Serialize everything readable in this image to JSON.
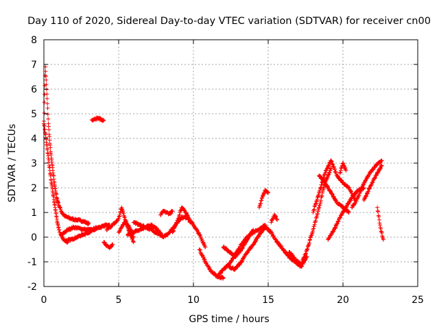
{
  "chart_data": {
    "type": "scatter",
    "title": "Day 110 of 2020, Sidereal Day-to-day VTEC variation (SDTVAR) for receiver cn00",
    "xlabel": "GPS time / hours",
    "ylabel": "SDTVAR / TECUs",
    "xlim": [
      0,
      25
    ],
    "ylim": [
      -2,
      8
    ],
    "x_ticks": [
      0,
      5,
      10,
      15,
      20,
      25
    ],
    "y_ticks": [
      -2,
      -1,
      0,
      1,
      2,
      3,
      4,
      5,
      6,
      7,
      8
    ],
    "grid": true,
    "marker": "+",
    "series": [
      {
        "name": "SDTVAR",
        "color": "#ff0000",
        "tracks": [
          {
            "x": [
              0.0,
              0.1,
              0.2,
              0.3,
              0.4,
              0.5,
              0.6,
              0.7,
              0.8,
              0.9,
              1.0,
              1.2,
              1.4,
              1.6,
              1.8,
              2.0,
              2.2,
              2.4,
              2.6,
              2.8,
              3.0
            ],
            "y": [
              4.7,
              6.9,
              5.8,
              4.6,
              3.8,
              3.2,
              2.7,
              2.2,
              1.8,
              1.5,
              1.3,
              1.0,
              0.85,
              0.8,
              0.75,
              0.72,
              0.7,
              0.68,
              0.65,
              0.6,
              0.55
            ]
          },
          {
            "x": [
              0.0,
              0.1,
              0.2,
              0.3,
              0.4,
              0.5,
              0.6,
              0.7,
              0.8,
              0.9,
              1.0,
              1.2,
              1.4,
              1.6
            ],
            "y": [
              4.6,
              4.2,
              3.7,
              3.2,
              2.7,
              2.2,
              1.8,
              1.4,
              1.0,
              0.6,
              0.3,
              0.0,
              -0.15,
              -0.2
            ]
          },
          {
            "x": [
              1.4,
              1.8,
              2.2,
              2.6,
              3.0,
              3.4,
              3.8,
              4.2
            ],
            "y": [
              -0.15,
              -0.1,
              0.0,
              0.1,
              0.2,
              0.3,
              0.4,
              0.5
            ]
          },
          {
            "x": [
              1.2,
              1.6,
              2.0,
              2.4,
              2.8,
              3.2,
              3.6,
              4.0,
              4.4
            ],
            "y": [
              0.1,
              0.3,
              0.4,
              0.35,
              0.3,
              0.3,
              0.4,
              0.45,
              0.5
            ]
          },
          {
            "x": [
              3.2,
              3.4,
              3.6,
              3.8,
              4.0
            ],
            "y": [
              4.75,
              4.8,
              4.82,
              4.78,
              4.72
            ]
          },
          {
            "x": [
              4.0,
              4.2,
              4.4,
              4.6
            ],
            "y": [
              -0.2,
              -0.35,
              -0.45,
              -0.3
            ]
          },
          {
            "x": [
              4.2,
              4.4,
              4.6,
              4.8,
              5.0,
              5.2,
              5.4,
              5.6,
              5.8,
              6.0
            ],
            "y": [
              0.3,
              0.4,
              0.5,
              0.6,
              0.75,
              1.2,
              0.8,
              0.4,
              0.1,
              -0.2
            ]
          },
          {
            "x": [
              5.0,
              5.2,
              5.4,
              5.6,
              5.8,
              6.0
            ],
            "y": [
              0.2,
              0.4,
              0.6,
              0.5,
              0.3,
              0.0
            ]
          },
          {
            "x": [
              5.6,
              6.0,
              6.4,
              6.8,
              7.2,
              7.6,
              8.0
            ],
            "y": [
              0.1,
              0.2,
              0.3,
              0.4,
              0.5,
              0.3,
              0.0
            ]
          },
          {
            "x": [
              6.0,
              6.4,
              6.8,
              7.2,
              7.6,
              8.0
            ],
            "y": [
              0.6,
              0.5,
              0.4,
              0.3,
              0.15,
              0.0
            ]
          },
          {
            "x": [
              7.8,
              8.0,
              8.2,
              8.4,
              8.6
            ],
            "y": [
              0.9,
              1.05,
              1.0,
              0.95,
              1.05
            ]
          },
          {
            "x": [
              8.0,
              8.4,
              8.8,
              9.2,
              9.6,
              10.0,
              10.4,
              10.8
            ],
            "y": [
              0.0,
              0.2,
              0.5,
              0.8,
              0.8,
              0.5,
              0.1,
              -0.4
            ]
          },
          {
            "x": [
              8.6,
              8.9,
              9.2,
              9.5,
              9.8
            ],
            "y": [
              0.2,
              0.6,
              1.2,
              1.0,
              0.6
            ]
          },
          {
            "x": [
              10.4,
              10.8,
              11.2,
              11.6,
              12.0
            ],
            "y": [
              -0.5,
              -1.0,
              -1.4,
              -1.6,
              -1.65
            ]
          },
          {
            "x": [
              11.6,
              12.0,
              12.4,
              12.8,
              13.2,
              13.6,
              14.0,
              14.4,
              14.8
            ],
            "y": [
              -1.6,
              -1.3,
              -1.1,
              -0.7,
              -0.3,
              0.0,
              0.2,
              0.3,
              0.5
            ]
          },
          {
            "x": [
              12.4,
              12.8,
              13.2,
              13.6,
              14.0,
              14.4,
              14.8
            ],
            "y": [
              -1.2,
              -1.3,
              -1.0,
              -0.6,
              -0.3,
              0.1,
              0.4
            ]
          },
          {
            "x": [
              12.0,
              12.4,
              12.8,
              13.2,
              13.6,
              14.0
            ],
            "y": [
              -0.4,
              -0.6,
              -0.8,
              -0.5,
              -0.1,
              0.3
            ]
          },
          {
            "x": [
              14.4,
              14.6,
              14.8,
              15.0
            ],
            "y": [
              1.2,
              1.6,
              1.9,
              1.8
            ]
          },
          {
            "x": [
              14.8,
              15.2,
              15.6,
              16.0,
              16.4,
              16.8,
              17.2,
              17.6
            ],
            "y": [
              0.4,
              0.2,
              -0.2,
              -0.5,
              -0.8,
              -1.0,
              -1.2,
              -0.8
            ]
          },
          {
            "x": [
              15.2,
              15.4,
              15.6
            ],
            "y": [
              0.6,
              0.9,
              0.7
            ]
          },
          {
            "x": [
              16.4,
              16.8,
              17.2,
              17.6,
              18.0,
              18.4,
              18.8,
              19.2
            ],
            "y": [
              -0.6,
              -0.9,
              -1.1,
              -0.5,
              0.3,
              1.2,
              2.2,
              2.8
            ]
          },
          {
            "x": [
              18.0,
              18.4,
              18.8,
              19.2,
              19.6,
              20.0,
              20.4,
              20.8
            ],
            "y": [
              1.0,
              1.8,
              2.6,
              3.1,
              2.5,
              2.2,
              2.0,
              1.5
            ]
          },
          {
            "x": [
              18.4,
              18.8,
              19.2,
              19.6,
              20.0,
              20.4
            ],
            "y": [
              2.5,
              2.2,
              1.8,
              1.4,
              1.2,
              1.0
            ]
          },
          {
            "x": [
              19.0,
              19.4,
              19.8,
              20.2,
              20.6,
              21.0,
              21.4
            ],
            "y": [
              -0.1,
              0.3,
              0.8,
              1.2,
              1.6,
              1.9,
              2.0
            ]
          },
          {
            "x": [
              19.8,
              20.0,
              20.2
            ],
            "y": [
              2.6,
              3.0,
              2.7
            ]
          },
          {
            "x": [
              20.6,
              21.0,
              21.4,
              21.8,
              22.2,
              22.6
            ],
            "y": [
              1.2,
              1.6,
              2.2,
              2.6,
              2.9,
              3.1
            ]
          },
          {
            "x": [
              21.4,
              21.8,
              22.2,
              22.6
            ],
            "y": [
              1.5,
              2.0,
              2.5,
              2.9
            ]
          },
          {
            "x": [
              22.3,
              22.5,
              22.7
            ],
            "y": [
              1.2,
              0.4,
              -0.1
            ]
          }
        ]
      }
    ]
  }
}
